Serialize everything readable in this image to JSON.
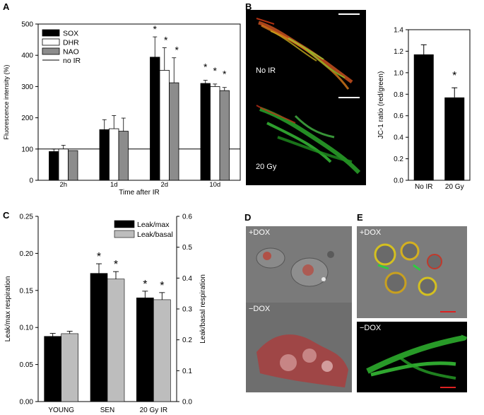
{
  "panels": {
    "A": {
      "letter": "A"
    },
    "B": {
      "letter": "B",
      "label_top": "No IR",
      "label_bottom": "20 Gy"
    },
    "C": {
      "letter": "C"
    },
    "D": {
      "letter": "D",
      "label_top": "+DOX",
      "label_bottom": "−DOX"
    },
    "E": {
      "letter": "E",
      "label_top": "+DOX",
      "label_bottom": "−DOX"
    }
  },
  "chart_data": [
    {
      "id": "A",
      "type": "bar",
      "categories": [
        "2h",
        "1d",
        "2d",
        "10d"
      ],
      "series": [
        {
          "name": "SOX",
          "color": "#000000",
          "values": [
            92,
            162,
            394,
            310
          ],
          "errors": [
            8,
            32,
            65,
            10
          ]
        },
        {
          "name": "DHR",
          "color": "#ffffff",
          "values": [
            100,
            165,
            352,
            300
          ],
          "errors": [
            12,
            42,
            72,
            8
          ]
        },
        {
          "name": "NAO",
          "color": "#8c8c8c",
          "values": [
            95,
            157,
            312,
            287
          ],
          "errors": [
            0,
            42,
            80,
            10
          ]
        }
      ],
      "reference_line": {
        "name": "no IR",
        "value": 100
      },
      "significance": [
        "",
        "",
        "*",
        "*"
      ],
      "xlabel": "Time after IR",
      "ylabel": "Fluorescence intensity (%)",
      "ylim": [
        0,
        500
      ],
      "yticks": [
        0,
        100,
        200,
        300,
        400,
        500
      ],
      "legend": "top-left"
    },
    {
      "id": "B",
      "type": "bar",
      "categories": [
        "No IR",
        "20 Gy"
      ],
      "values": [
        1.17,
        0.77
      ],
      "errors": [
        0.09,
        0.09
      ],
      "significance": [
        "",
        "*"
      ],
      "xlabel": "",
      "ylabel": "JC-1 ratio (red/green)",
      "ylim": [
        0,
        1.4
      ],
      "yticks": [
        "0.0",
        "0.2",
        "0.4",
        "0.6",
        "0.8",
        "1.0",
        "1.2",
        "1.4"
      ]
    },
    {
      "id": "C",
      "type": "bar",
      "categories": [
        "YOUNG",
        "SEN",
        "20 Gy IR"
      ],
      "series": [
        {
          "name": "Leak/max",
          "color": "#000000",
          "axis": "left",
          "values": [
            0.088,
            0.173,
            0.14
          ],
          "errors": [
            0.004,
            0.013,
            0.009
          ]
        },
        {
          "name": "Leak/basal",
          "color": "#bdbdbd",
          "axis": "right",
          "values": [
            0.22,
            0.397,
            0.33
          ],
          "errors": [
            0.008,
            0.024,
            0.023
          ]
        }
      ],
      "significance": [
        "",
        "*",
        "*"
      ],
      "ylabel": "Leak/max respiration",
      "y2label": "Leak/basal respiration",
      "ylim": [
        0,
        0.25
      ],
      "y2lim": [
        0,
        0.6
      ],
      "yticks": [
        "0.00",
        "0.05",
        "0.10",
        "0.15",
        "0.20",
        "0.25"
      ],
      "y2ticks": [
        "0.0",
        "0.1",
        "0.2",
        "0.3",
        "0.4",
        "0.5",
        "0.6"
      ],
      "legend": "top-right"
    }
  ]
}
